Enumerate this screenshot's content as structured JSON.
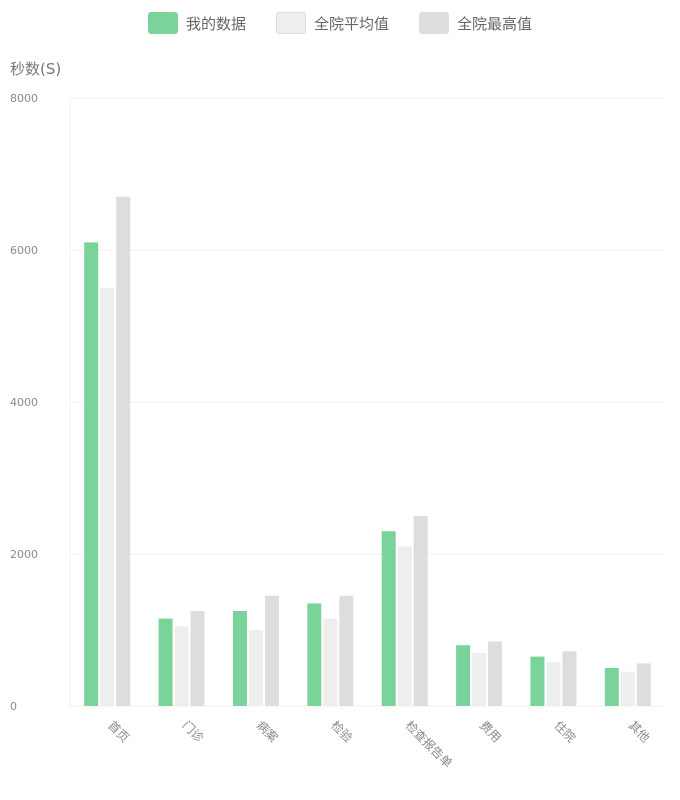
{
  "chart_data": {
    "type": "bar",
    "unit_label": "秒数(S)",
    "categories": [
      "首页",
      "门诊",
      "病案",
      "检验",
      "检查报告单",
      "费用",
      "住院",
      "其他"
    ],
    "series": [
      {
        "name": "我的数据",
        "color": "#7bd39c",
        "values": [
          6100,
          1150,
          1250,
          1350,
          2300,
          800,
          650,
          500
        ]
      },
      {
        "name": "全院平均值",
        "color": "#eeeeee",
        "values": [
          5500,
          1050,
          1000,
          1150,
          2100,
          700,
          580,
          450
        ]
      },
      {
        "name": "全院最高值",
        "color": "#dddddd",
        "values": [
          6700,
          1250,
          1450,
          1450,
          2500,
          850,
          720,
          560
        ]
      }
    ],
    "yticks": [
      0,
      2000,
      4000,
      6000,
      8000
    ],
    "ylim": [
      0,
      8000
    ],
    "grid": true,
    "legend_position": "top-center"
  }
}
